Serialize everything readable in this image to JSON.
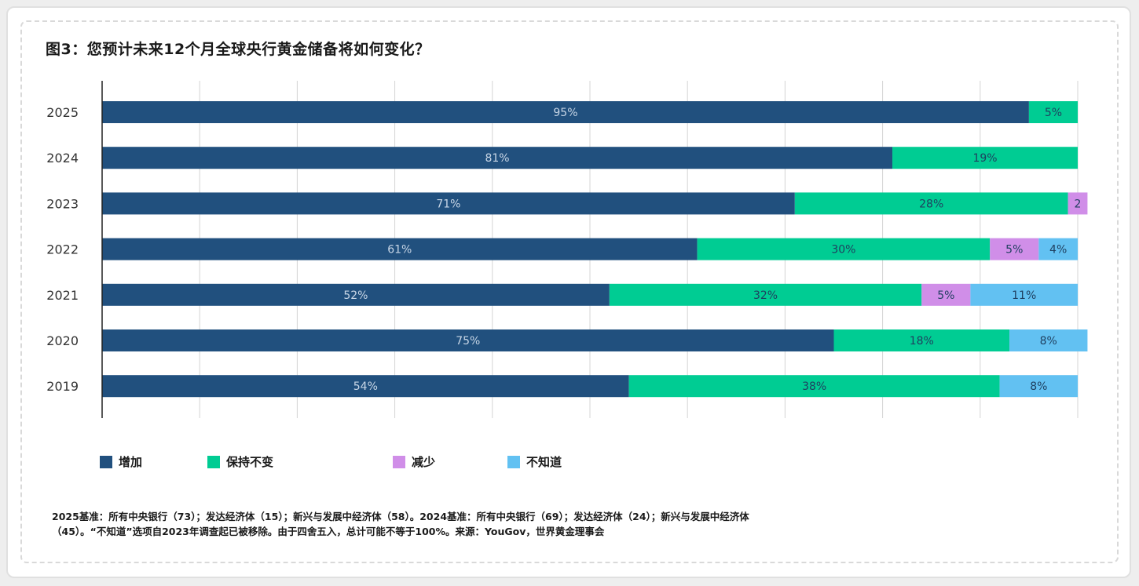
{
  "title": "图3：您预计未来12个月全球央行黄金储备将如何变化？",
  "colors": {
    "increase": "#21507e",
    "unchanged": "#00cc93",
    "decrease": "#d08ee8",
    "unknown": "#62c1f2"
  },
  "chart_data": {
    "type": "bar",
    "orientation": "horizontal",
    "stacked": true,
    "categories": [
      "2025",
      "2024",
      "2023",
      "2022",
      "2021",
      "2020",
      "2019"
    ],
    "xlim": [
      0,
      100
    ],
    "grid": true,
    "legend_position": "bottom",
    "series": [
      {
        "name": "增加",
        "color_key": "increase",
        "values": [
          95,
          81,
          71,
          61,
          52,
          75,
          54
        ],
        "labels": [
          "95%",
          "81%",
          "71%",
          "61%",
          "52%",
          "75%",
          "54%"
        ]
      },
      {
        "name": "保持不变",
        "color_key": "unchanged",
        "values": [
          5,
          19,
          28,
          30,
          32,
          18,
          38
        ],
        "labels": [
          "5%",
          "19%",
          "28%",
          "30%",
          "32%",
          "18%",
          "38%"
        ]
      },
      {
        "name": "减少",
        "color_key": "decrease",
        "values": [
          0,
          0,
          2,
          5,
          5,
          0,
          0
        ],
        "labels": [
          "",
          "",
          "2",
          "5%",
          "5%",
          "",
          ""
        ]
      },
      {
        "name": "不知道",
        "color_key": "unknown",
        "values": [
          0,
          0,
          0,
          4,
          11,
          8,
          8
        ],
        "labels": [
          "",
          "",
          "",
          "4%",
          "11%",
          "8%",
          "8%"
        ]
      }
    ]
  },
  "notes": {
    "line1": "2025基准：所有中央银行（73）；发达经济体（15）；新兴与发展中经济体（58）。2024基准：所有中央银行（69）；发达经济体（24）；新兴与发展中经济体",
    "line2": "（45）。“不知道”选项自2023年调查起已被移除。由于四舍五入，总计可能不等于100%。来源：YouGov，世界黄金理事会"
  }
}
